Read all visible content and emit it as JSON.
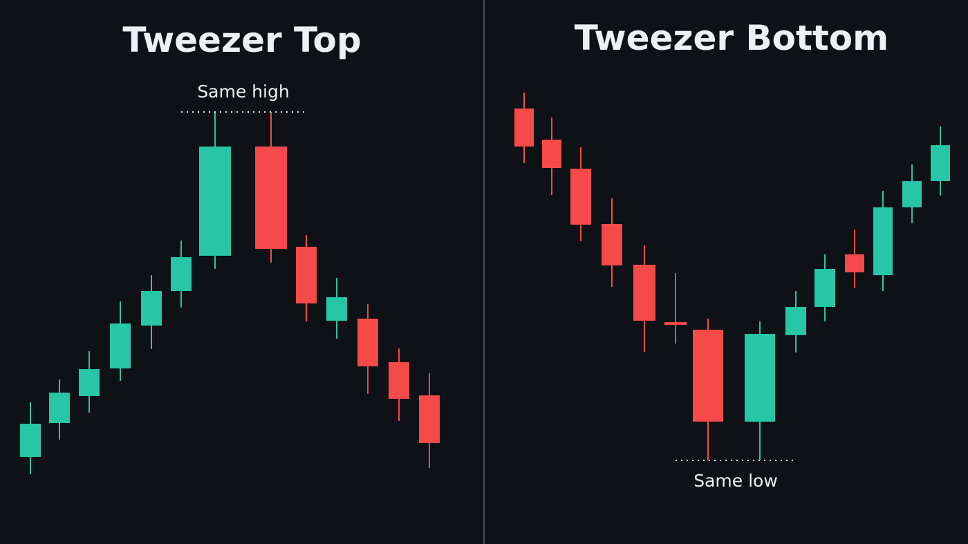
{
  "chart_data": [
    {
      "type": "candlestick",
      "title": "Tweezer Top",
      "annotation": "Same high",
      "up_color": "#26c6a6",
      "down_color": "#f44a4a",
      "ylim": [
        0,
        700
      ],
      "open": [
        39,
        88,
        127,
        167,
        229,
        279,
        330,
        488,
        343,
        236,
        239,
        176,
        128
      ],
      "high": [
        118,
        151,
        192,
        264,
        302,
        352,
        538,
        538,
        360,
        298,
        260,
        196,
        160
      ],
      "low": [
        14,
        64,
        103,
        149,
        195,
        255,
        311,
        320,
        235,
        210,
        130,
        91,
        23
      ],
      "close": [
        87,
        132,
        166,
        232,
        279,
        328,
        488,
        340,
        261,
        270,
        170,
        123,
        59
      ]
    },
    {
      "type": "candlestick",
      "title": "Tweezer Bottom",
      "annotation": "Same low",
      "up_color": "#26c6a6",
      "down_color": "#f44a4a",
      "ylim": [
        0,
        700
      ],
      "open": [
        543,
        498,
        456,
        376,
        317,
        234,
        223,
        90,
        215,
        256,
        332,
        302,
        400,
        438
      ],
      "high": [
        566,
        530,
        487,
        413,
        345,
        305,
        239,
        235,
        279,
        332,
        368,
        424,
        462,
        517
      ],
      "low": [
        464,
        418,
        351,
        285,
        191,
        203,
        34,
        34,
        190,
        235,
        283,
        279,
        377,
        417
      ],
      "close": [
        488,
        457,
        375,
        316,
        236,
        230,
        90,
        217,
        256,
        311,
        306,
        400,
        438,
        490
      ]
    }
  ]
}
